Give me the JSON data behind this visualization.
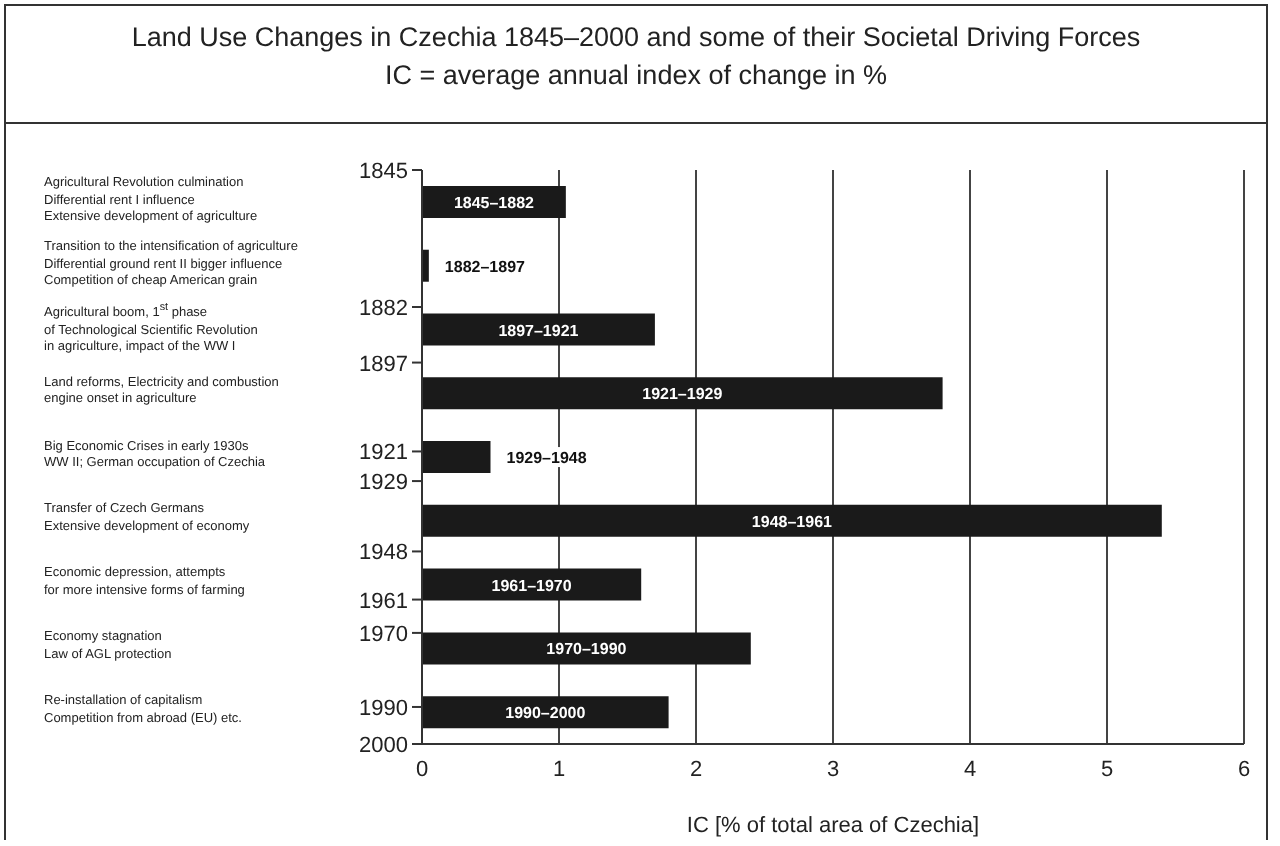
{
  "chart_data": {
    "type": "bar",
    "orientation": "horizontal",
    "title": "Land Use Changes in Czechia 1845–2000 and some of their Societal Driving Forces",
    "subtitle": "IC = average annual index of change in %",
    "xlabel": "IC [% of total area of Czechia]",
    "categories": [
      "1845–1882",
      "1882–1897",
      "1897–1921",
      "1921–1929",
      "1929–1948",
      "1948–1961",
      "1961–1970",
      "1970–1990",
      "1990–2000"
    ],
    "values": [
      1.05,
      0.05,
      1.7,
      3.8,
      0.5,
      5.4,
      1.6,
      2.4,
      1.8
    ],
    "color": "#1a1a1a",
    "xlim": [
      0,
      6
    ],
    "xticks": [
      0,
      1,
      2,
      3,
      4,
      5,
      6
    ],
    "y2lim": [
      2000,
      1845
    ],
    "y2ticks": [
      1845,
      1882,
      1897,
      1921,
      1929,
      1948,
      1961,
      1970,
      1990,
      2000
    ],
    "grid": "x",
    "annotations": [
      "Agricultural Revolution culmination\nDifferential rent I influence\nExtensive development of agriculture",
      "Transition to the intensification of agriculture\nDifferential ground rent II bigger influence\nCompetition of cheap American grain",
      "Agricultural boom, 1$^{st}$ phase\nof Technological Scientific Revolution\nin agriculture, impact of the WW I",
      "Land reforms, Electricity and combustion\nengine onset in agriculture",
      "Big Economic Crises in early 1930s\nWW II; German occupation of Czechia",
      "Transfer of  Czech Germans\nExtensive development of economy",
      "Economic depression, attempts\nfor more intensive forms of farming",
      "Economy stagnation\nLaw of AGL protection",
      "Re-installation of capitalism\nCompetition from abroad (EU) etc."
    ]
  }
}
